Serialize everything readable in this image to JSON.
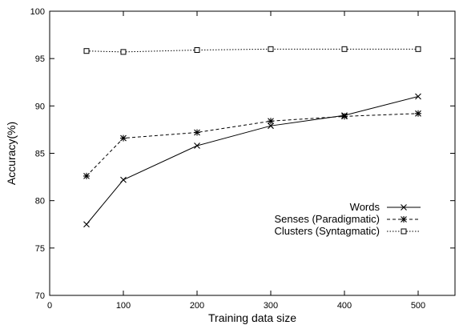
{
  "chart_data": {
    "type": "line",
    "xlabel": "Training data size",
    "ylabel": "Accuracy(%)",
    "xlim": [
      0,
      550
    ],
    "ylim": [
      70,
      100
    ],
    "xticks": [
      0,
      100,
      200,
      300,
      400,
      500
    ],
    "yticks": [
      70,
      75,
      80,
      85,
      90,
      95,
      100
    ],
    "grid": false,
    "legend_position": "right-middle",
    "x": [
      50,
      100,
      200,
      300,
      400,
      500
    ],
    "series": [
      {
        "name": "Words",
        "marker": "x-cross",
        "line": "solid",
        "values": [
          77.5,
          82.2,
          85.8,
          87.9,
          89.0,
          91.0
        ]
      },
      {
        "name": "Senses (Paradigmatic)",
        "marker": "star",
        "line": "dashed",
        "values": [
          82.6,
          86.6,
          87.2,
          88.4,
          88.9,
          89.2
        ]
      },
      {
        "name": "Clusters (Syntagmatic)",
        "marker": "square",
        "line": "dotted",
        "values": [
          95.8,
          95.7,
          95.9,
          96.0,
          96.0,
          96.0
        ]
      }
    ]
  }
}
